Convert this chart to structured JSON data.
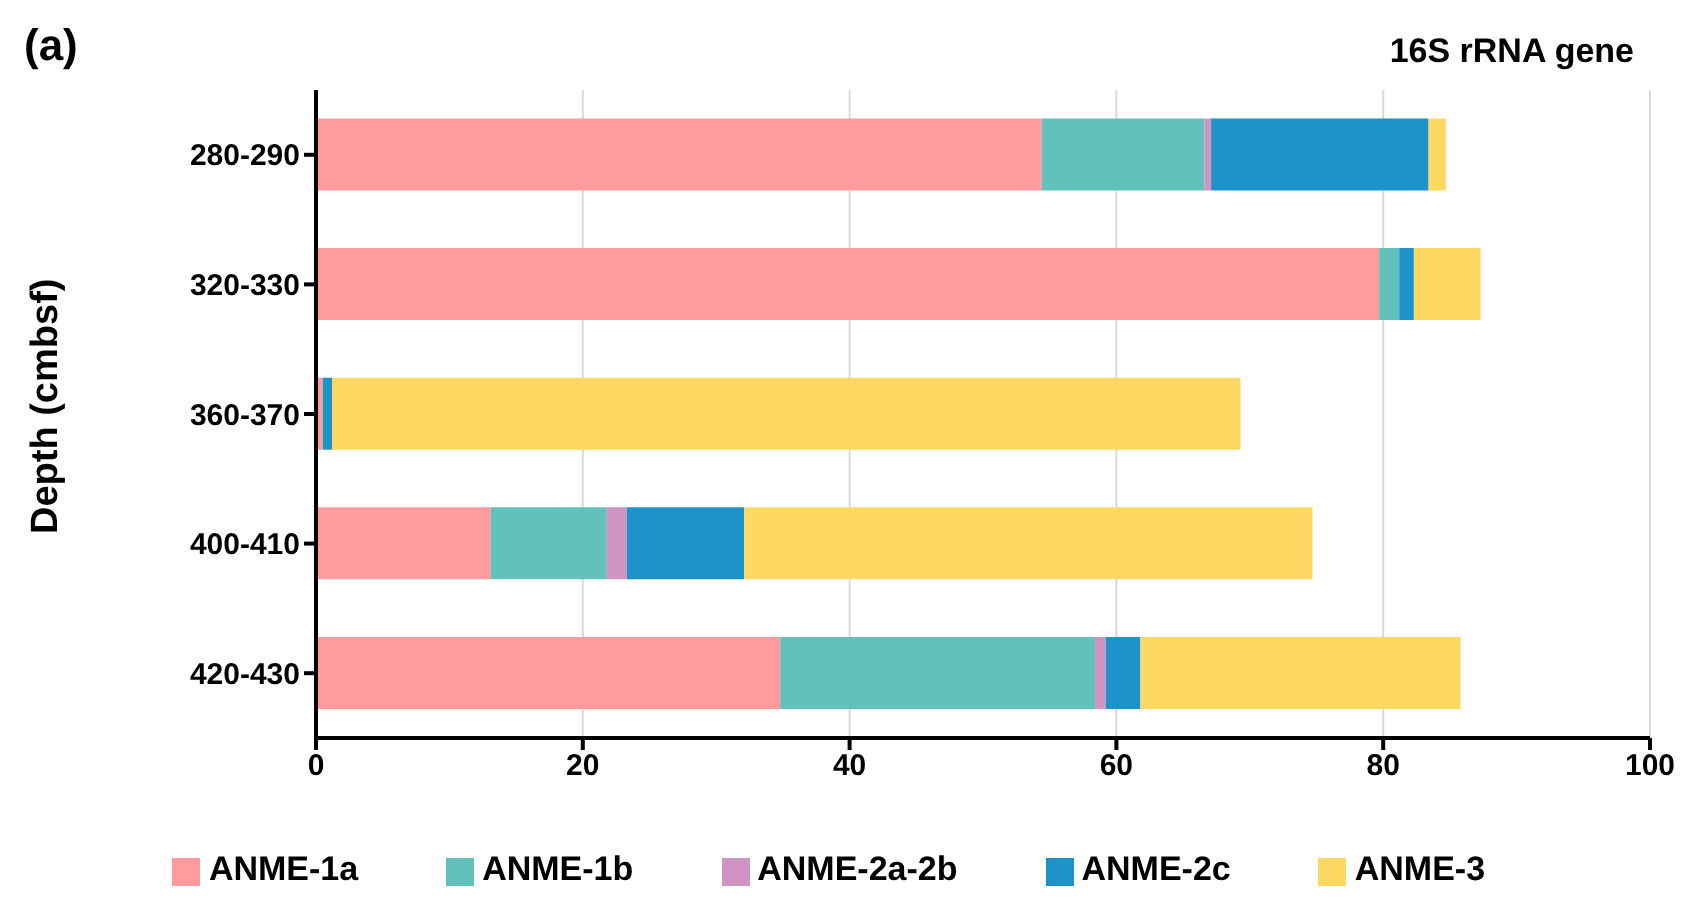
{
  "chart_data": {
    "type": "bar",
    "orientation": "horizontal",
    "stacked": true,
    "title": "16S rRNA gene",
    "annotations": [
      "(a)"
    ],
    "ylabel": "Depth (cmbsf)",
    "categories": [
      "280-290",
      "320-330",
      "360-370",
      "400-410",
      "420-430"
    ],
    "series": [
      {
        "name": "ANME-1a",
        "color": "#ff9b9e",
        "values": [
          54.4,
          79.7,
          0.5,
          13.1,
          34.8
        ]
      },
      {
        "name": "ANME-1b",
        "color": "#63c1bb",
        "values": [
          12.2,
          1.5,
          0,
          8.7,
          23.6
        ]
      },
      {
        "name": "ANME-2a-2b",
        "color": "#cf93c4",
        "values": [
          0.5,
          0,
          0,
          1.5,
          0.8
        ]
      },
      {
        "name": "ANME-2c",
        "color": "#1e93c9",
        "values": [
          16.3,
          1.1,
          0.7,
          8.8,
          2.6
        ]
      },
      {
        "name": "ANME-3",
        "color": "#fdd862",
        "values": [
          1.3,
          5.0,
          68.1,
          42.6,
          24.0
        ]
      }
    ],
    "xlim": [
      0,
      100
    ],
    "xticks": [
      0,
      20,
      40,
      60,
      80,
      100
    ],
    "grid": "x",
    "legend": "bottom"
  }
}
